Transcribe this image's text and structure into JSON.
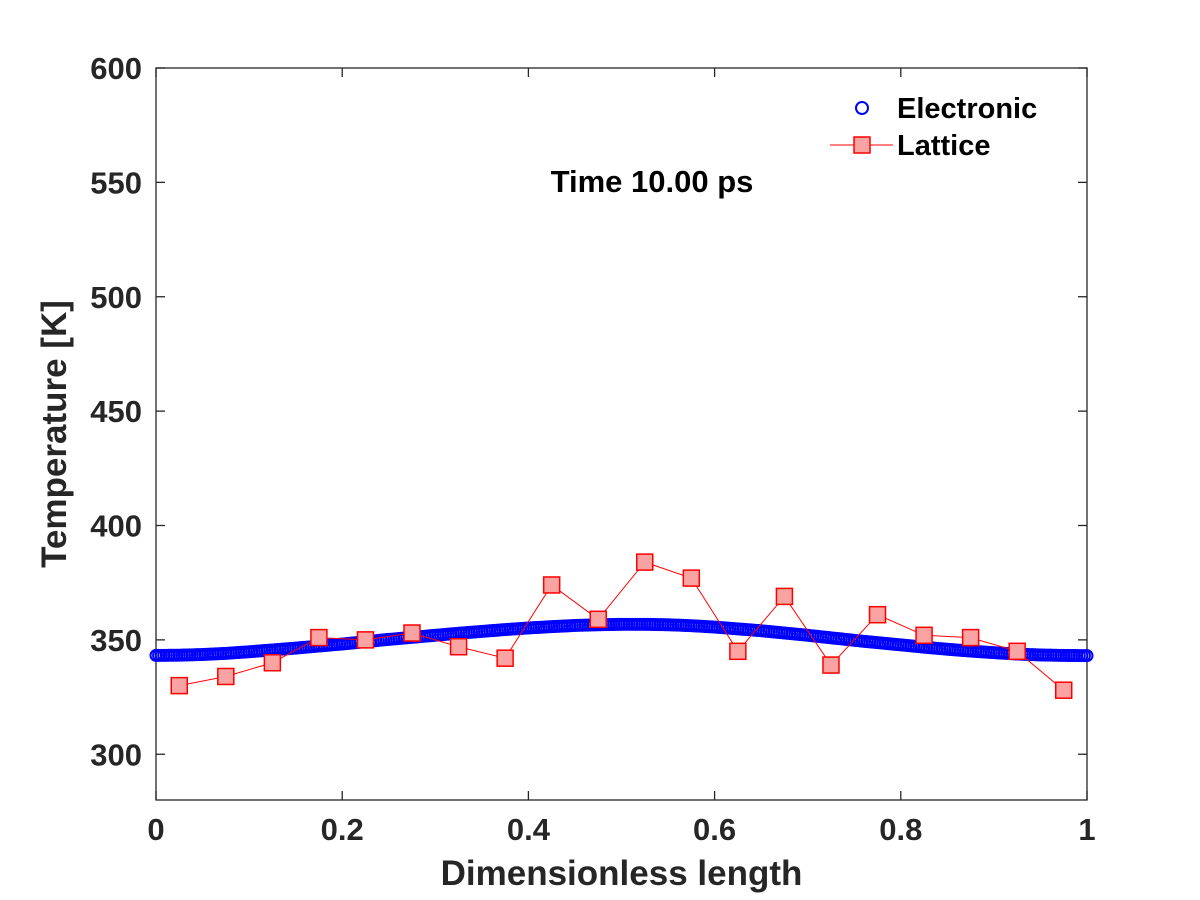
{
  "chart_data": {
    "type": "line",
    "title": "",
    "annotation": "Time 10.00 ps",
    "xlabel": "Dimensionless length",
    "ylabel": "Temperature [K]",
    "xlim": [
      0,
      1
    ],
    "ylim": [
      280,
      600
    ],
    "xticks": [
      0,
      0.2,
      0.4,
      0.6,
      0.8,
      1
    ],
    "xtick_labels": [
      "0",
      "0.2",
      "0.4",
      "0.6",
      "0.8",
      "1"
    ],
    "yticks": [
      300,
      350,
      400,
      450,
      500,
      550,
      600
    ],
    "ytick_labels": [
      "300",
      "350",
      "400",
      "450",
      "500",
      "550",
      "600"
    ],
    "legend_position": "top-right",
    "series": [
      {
        "name": "Electronic",
        "style": "circles",
        "color": "#0000ff",
        "x": [
          0.0,
          0.025,
          0.05,
          0.075,
          0.1,
          0.125,
          0.15,
          0.175,
          0.2,
          0.225,
          0.25,
          0.275,
          0.3,
          0.325,
          0.35,
          0.375,
          0.4,
          0.425,
          0.45,
          0.475,
          0.5,
          0.525,
          0.55,
          0.575,
          0.6,
          0.625,
          0.65,
          0.675,
          0.7,
          0.725,
          0.75,
          0.775,
          0.8,
          0.825,
          0.85,
          0.875,
          0.9,
          0.925,
          0.95,
          0.975,
          1.0
        ],
        "y": [
          343.2,
          343.3,
          343.6,
          344.1,
          344.8,
          345.6,
          346.4,
          347.3,
          348.2,
          349.2,
          350.2,
          351.1,
          352.0,
          352.9,
          353.7,
          354.5,
          355.2,
          355.8,
          356.3,
          356.6,
          356.8,
          356.8,
          356.6,
          356.2,
          355.6,
          354.8,
          354.0,
          353.0,
          352.0,
          350.9,
          349.8,
          348.8,
          347.8,
          346.8,
          345.9,
          345.1,
          344.4,
          343.8,
          343.4,
          343.2,
          343.1
        ]
      },
      {
        "name": "Lattice",
        "style": "line-squares",
        "color": "#ff0000",
        "fill": "#f9a3a3",
        "x": [
          0.025,
          0.075,
          0.125,
          0.175,
          0.225,
          0.275,
          0.325,
          0.375,
          0.425,
          0.475,
          0.525,
          0.575,
          0.625,
          0.675,
          0.725,
          0.775,
          0.825,
          0.875,
          0.925,
          0.975
        ],
        "y": [
          330,
          334,
          340,
          351,
          350,
          353,
          347,
          342,
          374,
          359,
          384,
          377,
          345,
          369,
          339,
          361,
          352,
          351,
          345,
          328
        ]
      }
    ]
  }
}
